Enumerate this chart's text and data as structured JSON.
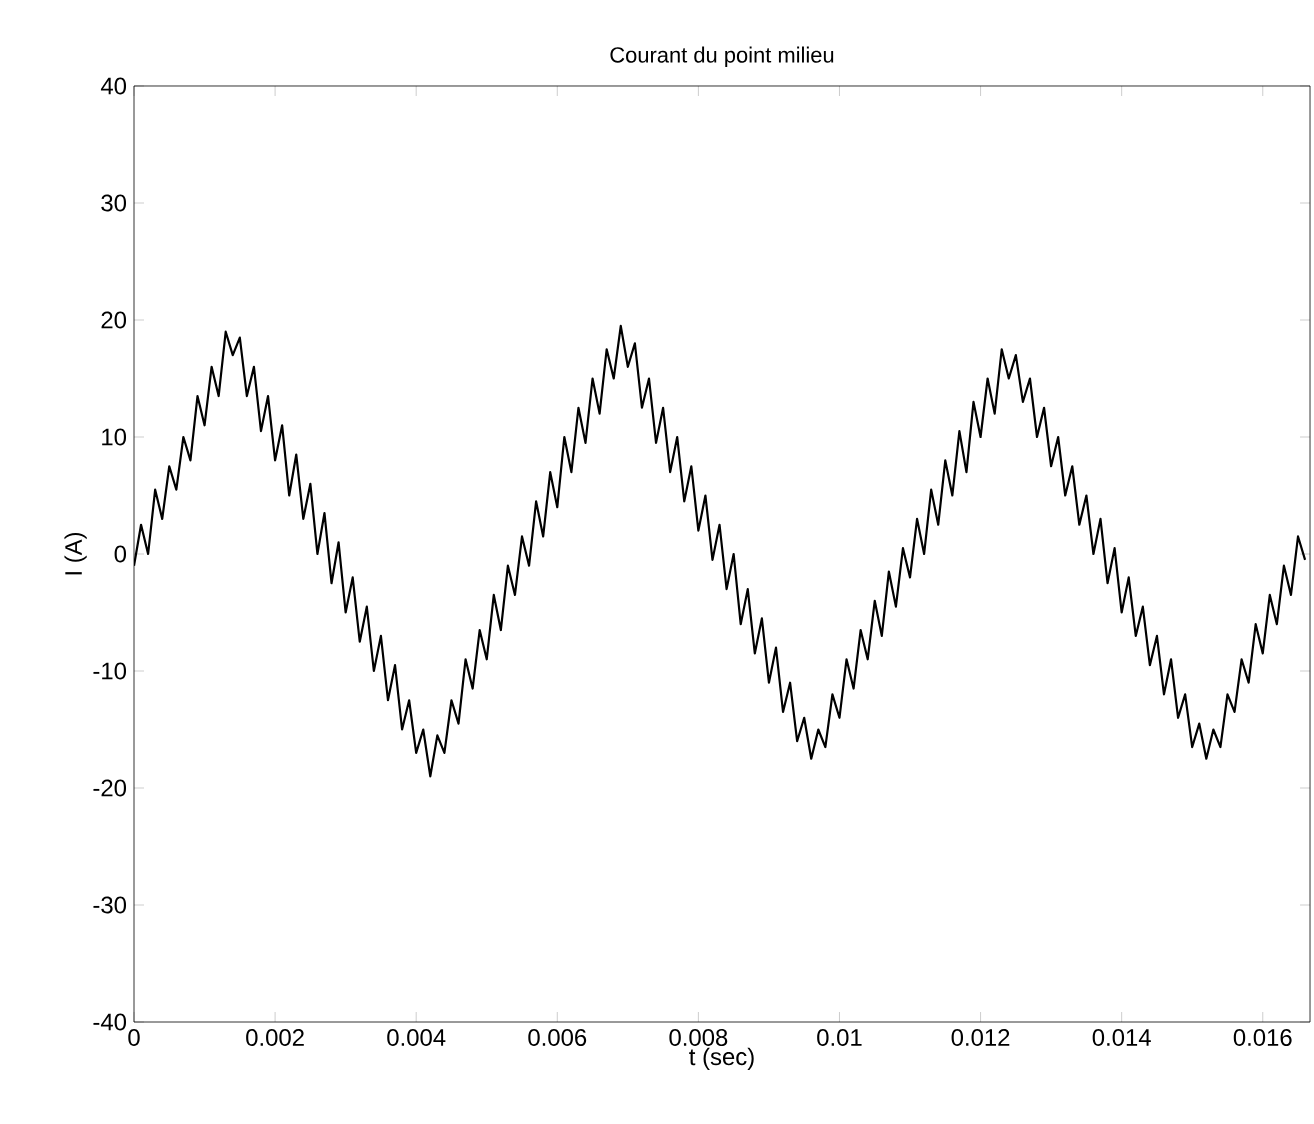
{
  "chart_data": {
    "type": "line",
    "title": "Courant du point milieu",
    "xlabel": "t (sec)",
    "ylabel": "I (A)",
    "color": "#000000",
    "xlim": [
      0,
      0.01667
    ],
    "ylim": [
      -40,
      40
    ],
    "xticks": [
      0,
      0.002,
      0.004,
      0.006,
      0.008,
      0.01,
      0.012,
      0.014,
      0.016
    ],
    "yticks": [
      -40,
      -30,
      -20,
      -10,
      0,
      10,
      20,
      30,
      40
    ],
    "x": [
      0,
      0.0001,
      0.0002,
      0.0003,
      0.0004,
      0.0005,
      0.0006,
      0.0007,
      0.0008,
      0.0009,
      0.001,
      0.0011,
      0.0012,
      0.0013,
      0.0014,
      0.0015,
      0.0016,
      0.0017,
      0.0018,
      0.0019,
      0.002,
      0.0021,
      0.0022,
      0.0023,
      0.0024,
      0.0025,
      0.0026,
      0.0027,
      0.0028,
      0.0029,
      0.003,
      0.0031,
      0.0032,
      0.0033,
      0.0034,
      0.0035,
      0.0036,
      0.0037,
      0.0038,
      0.0039,
      0.004,
      0.0041,
      0.0042,
      0.0043,
      0.0044,
      0.0045,
      0.0046,
      0.0047,
      0.0048,
      0.0049,
      0.005,
      0.0051,
      0.0052,
      0.0053,
      0.0054,
      0.0055,
      0.0056,
      0.0057,
      0.0058,
      0.0059,
      0.006,
      0.0061,
      0.0062,
      0.0063,
      0.0064,
      0.0065,
      0.0066,
      0.0067,
      0.0068,
      0.0069,
      0.007,
      0.0071,
      0.0072,
      0.0073,
      0.0074,
      0.0075,
      0.0076,
      0.0077,
      0.0078,
      0.0079,
      0.008,
      0.0081,
      0.0082,
      0.0083,
      0.0084,
      0.0085,
      0.0086,
      0.0087,
      0.0088,
      0.0089,
      0.009,
      0.0091,
      0.0092,
      0.0093,
      0.0094,
      0.0095,
      0.0096,
      0.0097,
      0.0098,
      0.0099,
      0.01,
      0.0101,
      0.0102,
      0.0103,
      0.0104,
      0.0105,
      0.0106,
      0.0107,
      0.0108,
      0.0109,
      0.011,
      0.0111,
      0.0112,
      0.0113,
      0.0114,
      0.0115,
      0.0116,
      0.0117,
      0.0118,
      0.0119,
      0.012,
      0.0121,
      0.0122,
      0.0123,
      0.0124,
      0.0125,
      0.0126,
      0.0127,
      0.0128,
      0.0129,
      0.013,
      0.0131,
      0.0132,
      0.0133,
      0.0134,
      0.0135,
      0.0136,
      0.0137,
      0.0138,
      0.0139,
      0.014,
      0.0141,
      0.0142,
      0.0143,
      0.0144,
      0.0145,
      0.0146,
      0.0147,
      0.0148,
      0.0149,
      0.015,
      0.0151,
      0.0152,
      0.0153,
      0.0154,
      0.0155,
      0.0156,
      0.0157,
      0.0158,
      0.0159,
      0.016,
      0.0161,
      0.0162,
      0.0163,
      0.0164,
      0.0165,
      0.0166
    ],
    "values": [
      -1,
      2.5,
      0,
      5.5,
      3,
      7.5,
      5.5,
      10,
      8,
      13.5,
      11,
      16,
      13.5,
      19,
      17,
      18.5,
      13.5,
      16,
      10.5,
      13.5,
      8,
      11,
      5,
      8.5,
      3,
      6,
      0,
      3.5,
      -2.5,
      1,
      -5,
      -2,
      -7.5,
      -4.5,
      -10,
      -7,
      -12.5,
      -9.5,
      -15,
      -12.5,
      -17,
      -15,
      -19,
      -15.5,
      -17,
      -12.5,
      -14.5,
      -9,
      -11.5,
      -6.5,
      -9,
      -3.5,
      -6.5,
      -1,
      -3.5,
      1.5,
      -1,
      4.5,
      1.5,
      7,
      4,
      10,
      7,
      12.5,
      9.5,
      15,
      12,
      17.5,
      15,
      19.5,
      16,
      18,
      12.5,
      15,
      9.5,
      12.5,
      7,
      10,
      4.5,
      7.5,
      2,
      5,
      -0.5,
      2.5,
      -3,
      0,
      -6,
      -3,
      -8.5,
      -5.5,
      -11,
      -8,
      -13.5,
      -11,
      -16,
      -14,
      -17.5,
      -15,
      -16.5,
      -12,
      -14,
      -9,
      -11.5,
      -6.5,
      -9,
      -4,
      -7,
      -1.5,
      -4.5,
      0.5,
      -2,
      3,
      0,
      5.5,
      2.5,
      8,
      5,
      10.5,
      7,
      13,
      10,
      15,
      12,
      17.5,
      15,
      17,
      13,
      15,
      10,
      12.5,
      7.5,
      10,
      5,
      7.5,
      2.5,
      5,
      0,
      3,
      -2.5,
      0.5,
      -5,
      -2,
      -7,
      -4.5,
      -9.5,
      -7,
      -12,
      -9,
      -14,
      -12,
      -16.5,
      -14.5,
      -17.5,
      -15,
      -16.5,
      -12,
      -13.5,
      -9,
      -11,
      -6,
      -8.5,
      -3.5,
      -6,
      -1,
      -3.5,
      1.5,
      -0.5
    ]
  }
}
